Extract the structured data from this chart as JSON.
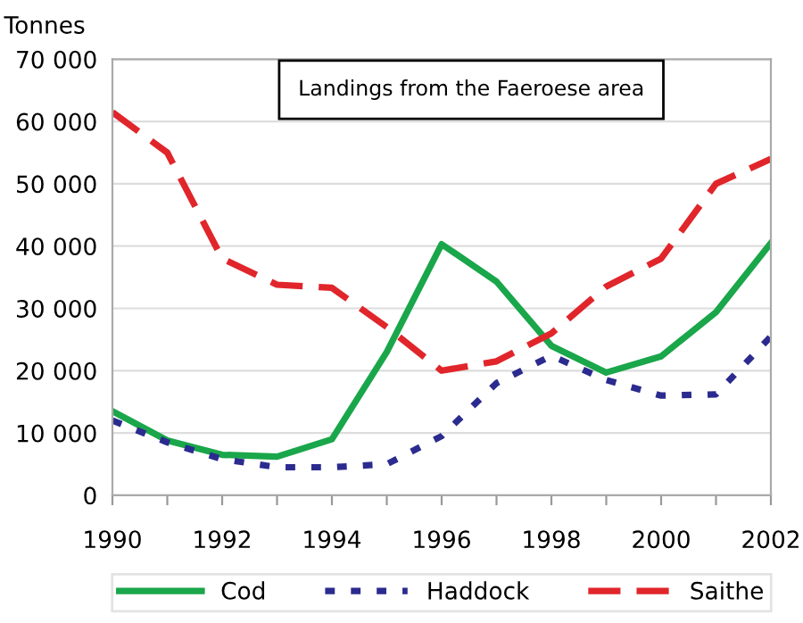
{
  "chart_data": {
    "type": "line",
    "title": "Landings from the Faeroese area",
    "ylabel": "Tonnes",
    "x": [
      1990,
      1991,
      1992,
      1993,
      1994,
      1995,
      1996,
      1997,
      1998,
      1999,
      2000,
      2001,
      2002
    ],
    "series": [
      {
        "name": "Cod",
        "color": "#1aa64a",
        "line_style": "solid",
        "values": [
          13500,
          8800,
          6500,
          6200,
          9000,
          23000,
          40300,
          34300,
          24000,
          19700,
          22300,
          29400,
          40500
        ]
      },
      {
        "name": "Haddock",
        "color": "#2b2b8f",
        "line_style": "dotted",
        "values": [
          12000,
          8500,
          5800,
          4500,
          4500,
          5000,
          9500,
          18000,
          22400,
          18500,
          16000,
          16200,
          25500
        ]
      },
      {
        "name": "Saithe",
        "color": "#e0262b",
        "line_style": "dashed",
        "values": [
          61500,
          55000,
          38000,
          33800,
          33300,
          27000,
          20000,
          21500,
          26000,
          33500,
          38000,
          50000,
          54000
        ]
      }
    ],
    "xlim": [
      1990,
      2002
    ],
    "xticks": [
      1990,
      {
        "value": 1991,
        "label": null
      },
      1992,
      {
        "value": 1993,
        "label": null
      },
      1994,
      {
        "value": 1995,
        "label": null
      },
      1996,
      {
        "value": 1997,
        "label": null
      },
      1998,
      {
        "value": 1999,
        "label": null
      },
      2000,
      {
        "value": 2001,
        "label": null
      },
      2002
    ],
    "ylim": [
      0,
      70000
    ],
    "yticks": [
      {
        "value": 0,
        "label": "0"
      },
      {
        "value": 10000,
        "label": "10 000"
      },
      {
        "value": 20000,
        "label": "20 000"
      },
      {
        "value": 30000,
        "label": "30 000"
      },
      {
        "value": 40000,
        "label": "40 000"
      },
      {
        "value": 50000,
        "label": "50 000"
      },
      {
        "value": 60000,
        "label": "60 000"
      },
      {
        "value": 70000,
        "label": "70 000"
      }
    ],
    "grid": "y",
    "legend": "bottom",
    "marker": "none"
  }
}
